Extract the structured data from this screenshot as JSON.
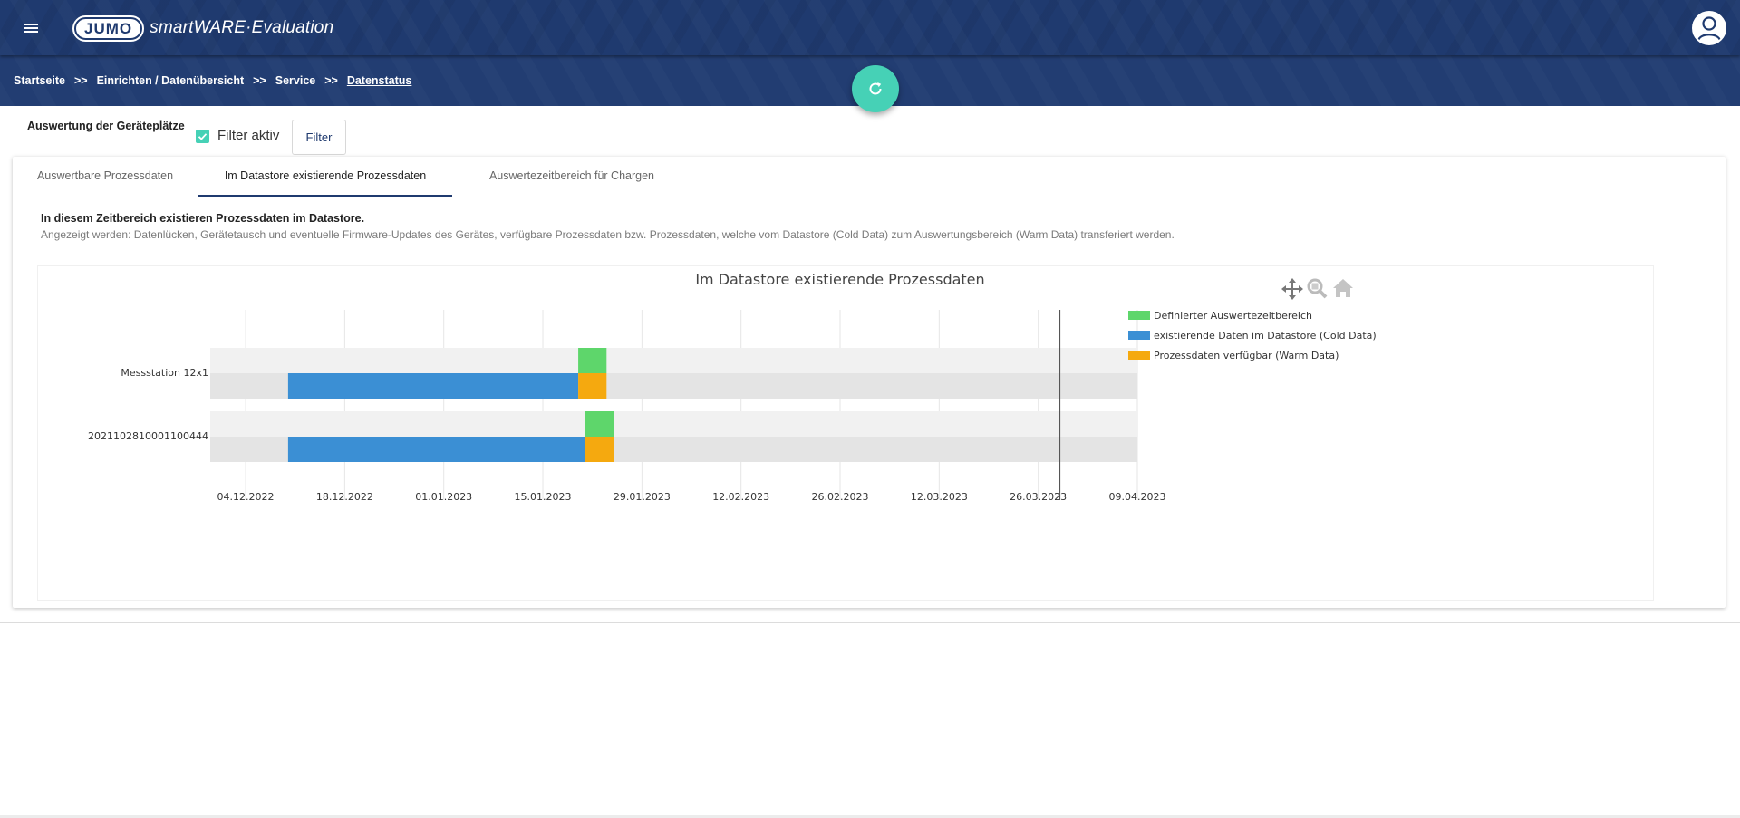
{
  "app": {
    "logo_badge": "JUMO",
    "logo_text": "smartWARE·Evaluation"
  },
  "breadcrumb": [
    {
      "label": "Startseite"
    },
    {
      "label": "Einrichten / Datenübersicht"
    },
    {
      "label": "Service"
    },
    {
      "label": "Datenstatus"
    }
  ],
  "breadcrumb_separator": ">>",
  "page": {
    "section_label": "Auswertung der Geräteplätze",
    "filter_checkbox_label": "Filter aktiv",
    "filter_checked": true,
    "filter_button": "Filter"
  },
  "tabs": [
    {
      "label": "Auswertbare Prozessdaten",
      "active": false
    },
    {
      "label": "Im Datastore existierende Prozessdaten",
      "active": true
    },
    {
      "label": "Auswertezeitbereich für Chargen",
      "active": false
    }
  ],
  "info": {
    "title": "In diesem Zeitbereich existieren Prozessdaten im Datastore.",
    "description": "Angezeigt werden: Datenlücken, Gerätetausch und eventuelle Firmware-Updates des Gerätes, verfügbare Prozessdaten bzw. Prozessdaten, welche vom Datastore (Cold Data) zum Auswertungsbereich (Warm Data) transferiert werden."
  },
  "colors": {
    "header": "#1f3a6f",
    "accent": "#46d1b6",
    "green": "#5ed66b",
    "blue": "#3b8fd4",
    "orange": "#f5a90f"
  },
  "chart_toolbar": [
    "move-icon",
    "zoom-icon",
    "home-icon"
  ],
  "chart_data": {
    "type": "gantt",
    "title": "Im Datastore existierende Prozessdaten",
    "x_ticks": [
      "04.12.2022",
      "18.12.2022",
      "01.01.2023",
      "15.01.2023",
      "29.01.2023",
      "12.02.2023",
      "26.02.2023",
      "12.03.2023",
      "26.03.2023",
      "09.04.2023"
    ],
    "xlim": [
      "2022-11-29",
      "2023-04-09"
    ],
    "marker_line": "2023-03-29",
    "legend_position": "right",
    "series": [
      {
        "name": "Definierter Auswertezeitbereich",
        "color": "#5ed66b"
      },
      {
        "name": "existierende Daten im Datastore (Cold Data)",
        "color": "#3b8fd4"
      },
      {
        "name": "Prozessdaten verfügbar (Warm Data)",
        "color": "#f5a90f"
      }
    ],
    "rows": [
      {
        "label": "Messstation 12x1",
        "bars": [
          {
            "series": 0,
            "start": "2023-01-20",
            "end": "2023-01-24"
          },
          {
            "series": 1,
            "start": "2022-12-10",
            "end": "2023-01-20"
          },
          {
            "series": 2,
            "start": "2023-01-20",
            "end": "2023-01-24"
          }
        ]
      },
      {
        "label": "2021102810001100444",
        "bars": [
          {
            "series": 0,
            "start": "2023-01-21",
            "end": "2023-01-25"
          },
          {
            "series": 1,
            "start": "2022-12-10",
            "end": "2023-01-21"
          },
          {
            "series": 2,
            "start": "2023-01-21",
            "end": "2023-01-25"
          }
        ]
      }
    ]
  }
}
